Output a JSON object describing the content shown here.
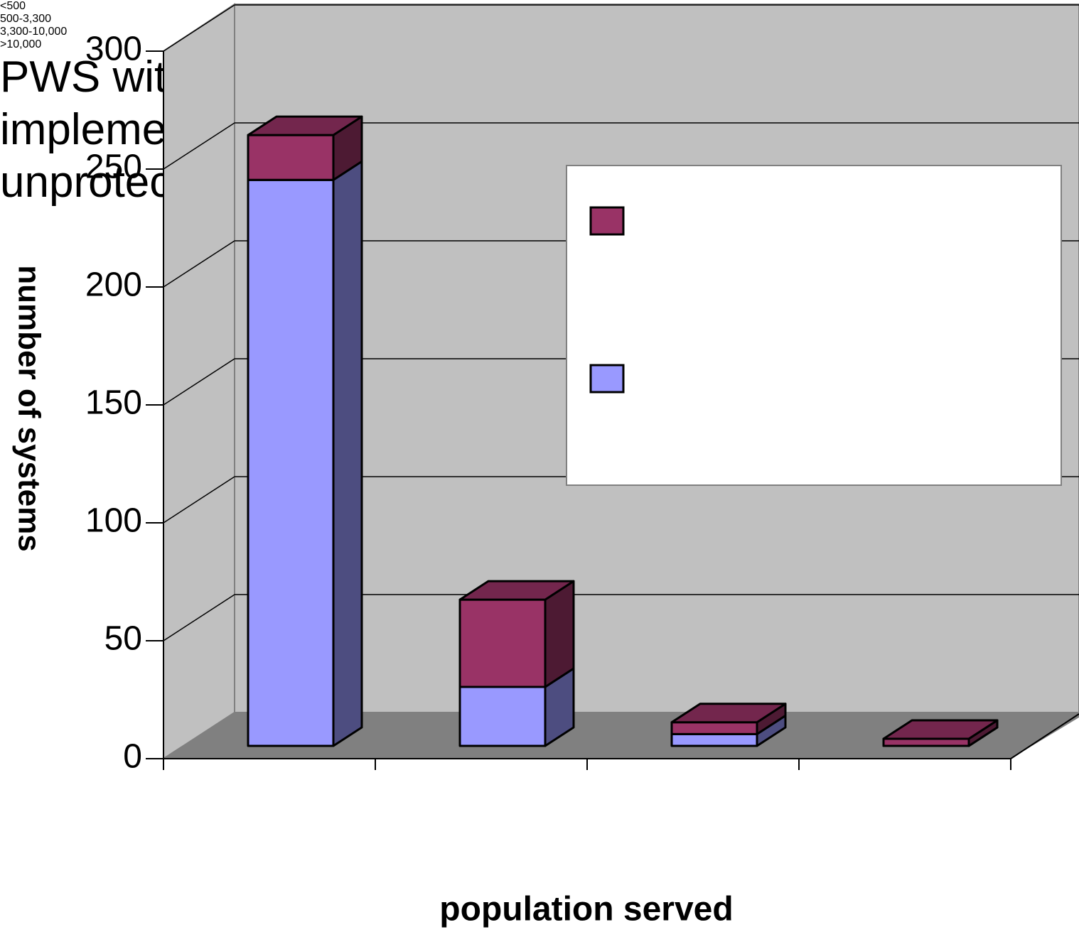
{
  "chart_data": {
    "type": "bar3d_stacked",
    "categories": [
      "<500",
      "500-3,300",
      "3,300-10,000",
      ">10,000"
    ],
    "series": [
      {
        "name": "unprotected PWS",
        "color": "#9999ff",
        "values": [
          240,
          25,
          5,
          0
        ]
      },
      {
        "name": "PWS with implemented plan",
        "color": "#993366",
        "values": [
          19,
          37,
          5,
          3
        ]
      }
    ],
    "ylim": [
      0,
      300
    ],
    "yticks": [
      0,
      50,
      100,
      150,
      200,
      250,
      300
    ],
    "grid": true,
    "y_label": "number of systems",
    "x_label": "population served",
    "legend": "right"
  }
}
